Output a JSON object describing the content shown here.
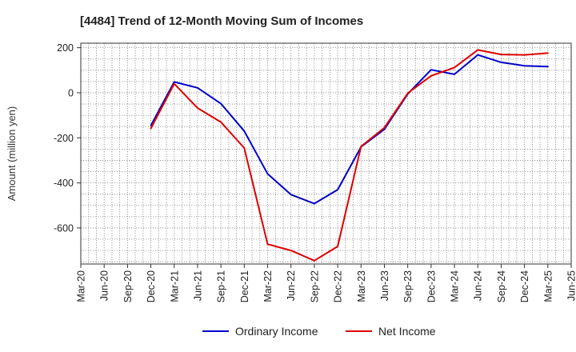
{
  "chart_data": {
    "type": "line",
    "title": "[4484]  Trend of 12-Month Moving Sum of Incomes",
    "ylabel": "Amount (million yen)",
    "xlabel": "",
    "ylim": [
      -760,
      220
    ],
    "yticks": [
      200,
      0,
      -200,
      -400,
      -600
    ],
    "grid": true,
    "legend_position": "bottom",
    "categories": [
      "Mar-20",
      "Jun-20",
      "Sep-20",
      "Dec-20",
      "Mar-21",
      "Jun-21",
      "Sep-21",
      "Dec-21",
      "Mar-22",
      "Jun-22",
      "Sep-22",
      "Dec-22",
      "Mar-23",
      "Jun-23",
      "Sep-23",
      "Dec-23",
      "Mar-24",
      "Jun-24",
      "Sep-24",
      "Dec-24",
      "Mar-25",
      "Jun-25"
    ],
    "series": [
      {
        "name": "Ordinary Income",
        "color": "#0000cc",
        "values": [
          null,
          null,
          null,
          -145,
          48,
          22,
          -48,
          -170,
          -360,
          -452,
          -492,
          -430,
          -240,
          -162,
          -5,
          102,
          82,
          168,
          135,
          120,
          116,
          null
        ]
      },
      {
        "name": "Net Income",
        "color": "#dd0000",
        "values": [
          null,
          null,
          null,
          -158,
          40,
          -68,
          -130,
          -245,
          -672,
          -700,
          -745,
          -682,
          -238,
          -155,
          -2,
          75,
          112,
          190,
          170,
          168,
          176,
          null
        ]
      }
    ]
  }
}
